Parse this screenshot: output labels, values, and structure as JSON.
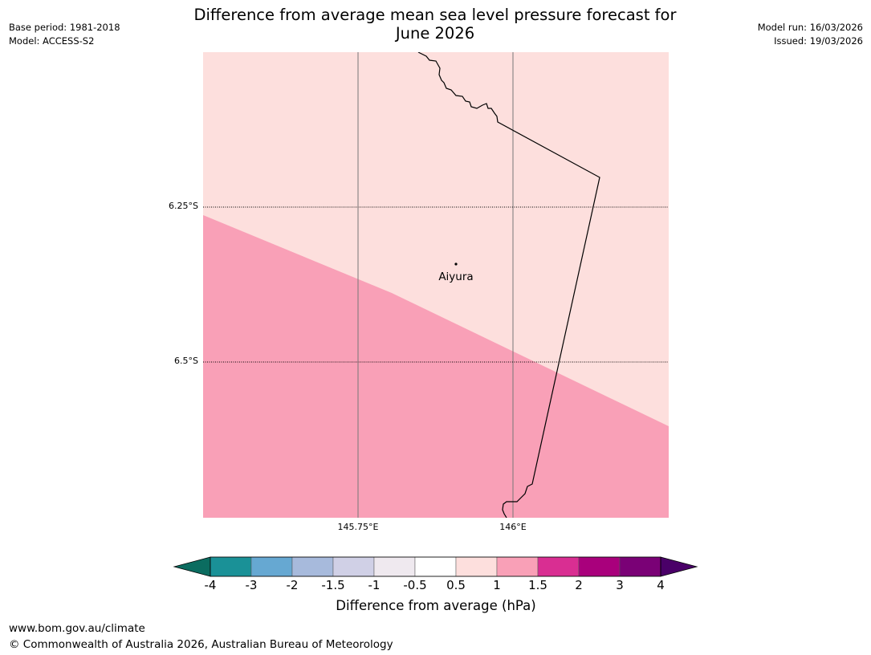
{
  "header": {
    "title_line1": "Difference from average mean sea level pressure forecast for",
    "title_line2": "June 2026",
    "base_period": "Base period: 1981-2018",
    "model": "Model: ACCESS-S2",
    "model_run": "Model run: 16/03/2026",
    "issued": "Issued: 19/03/2026"
  },
  "map": {
    "place_name": "Aiyura",
    "latitude_labels": [
      "6.25°S",
      "6.5°S"
    ],
    "longitude_labels": [
      "145.75°E",
      "146°E"
    ],
    "fill_colors": {
      "band_0.5_to_1": "#fddfdd",
      "band_1_to_1.5": "#f9a0b7"
    },
    "border_color": "#000000"
  },
  "colorbar": {
    "label": "Difference from average (hPa)",
    "ticks": [
      "-4",
      "-3",
      "-2",
      "-1.5",
      "-1",
      "-0.5",
      "0.5",
      "1",
      "1.5",
      "2",
      "3",
      "4"
    ],
    "colors": [
      "#1a9197",
      "#66a8d2",
      "#a7badc",
      "#d0d0e6",
      "#efe9ef",
      "#ffffff",
      "#fddfdd",
      "#f9a0b7",
      "#d92e92",
      "#a9007c",
      "#7a0176"
    ],
    "under_color": "#0b6c60",
    "over_color": "#4a0068"
  },
  "footer": {
    "url": "www.bom.gov.au/climate",
    "copyright": "© Commonwealth of Australia 2026, Australian Bureau of Meteorology"
  }
}
